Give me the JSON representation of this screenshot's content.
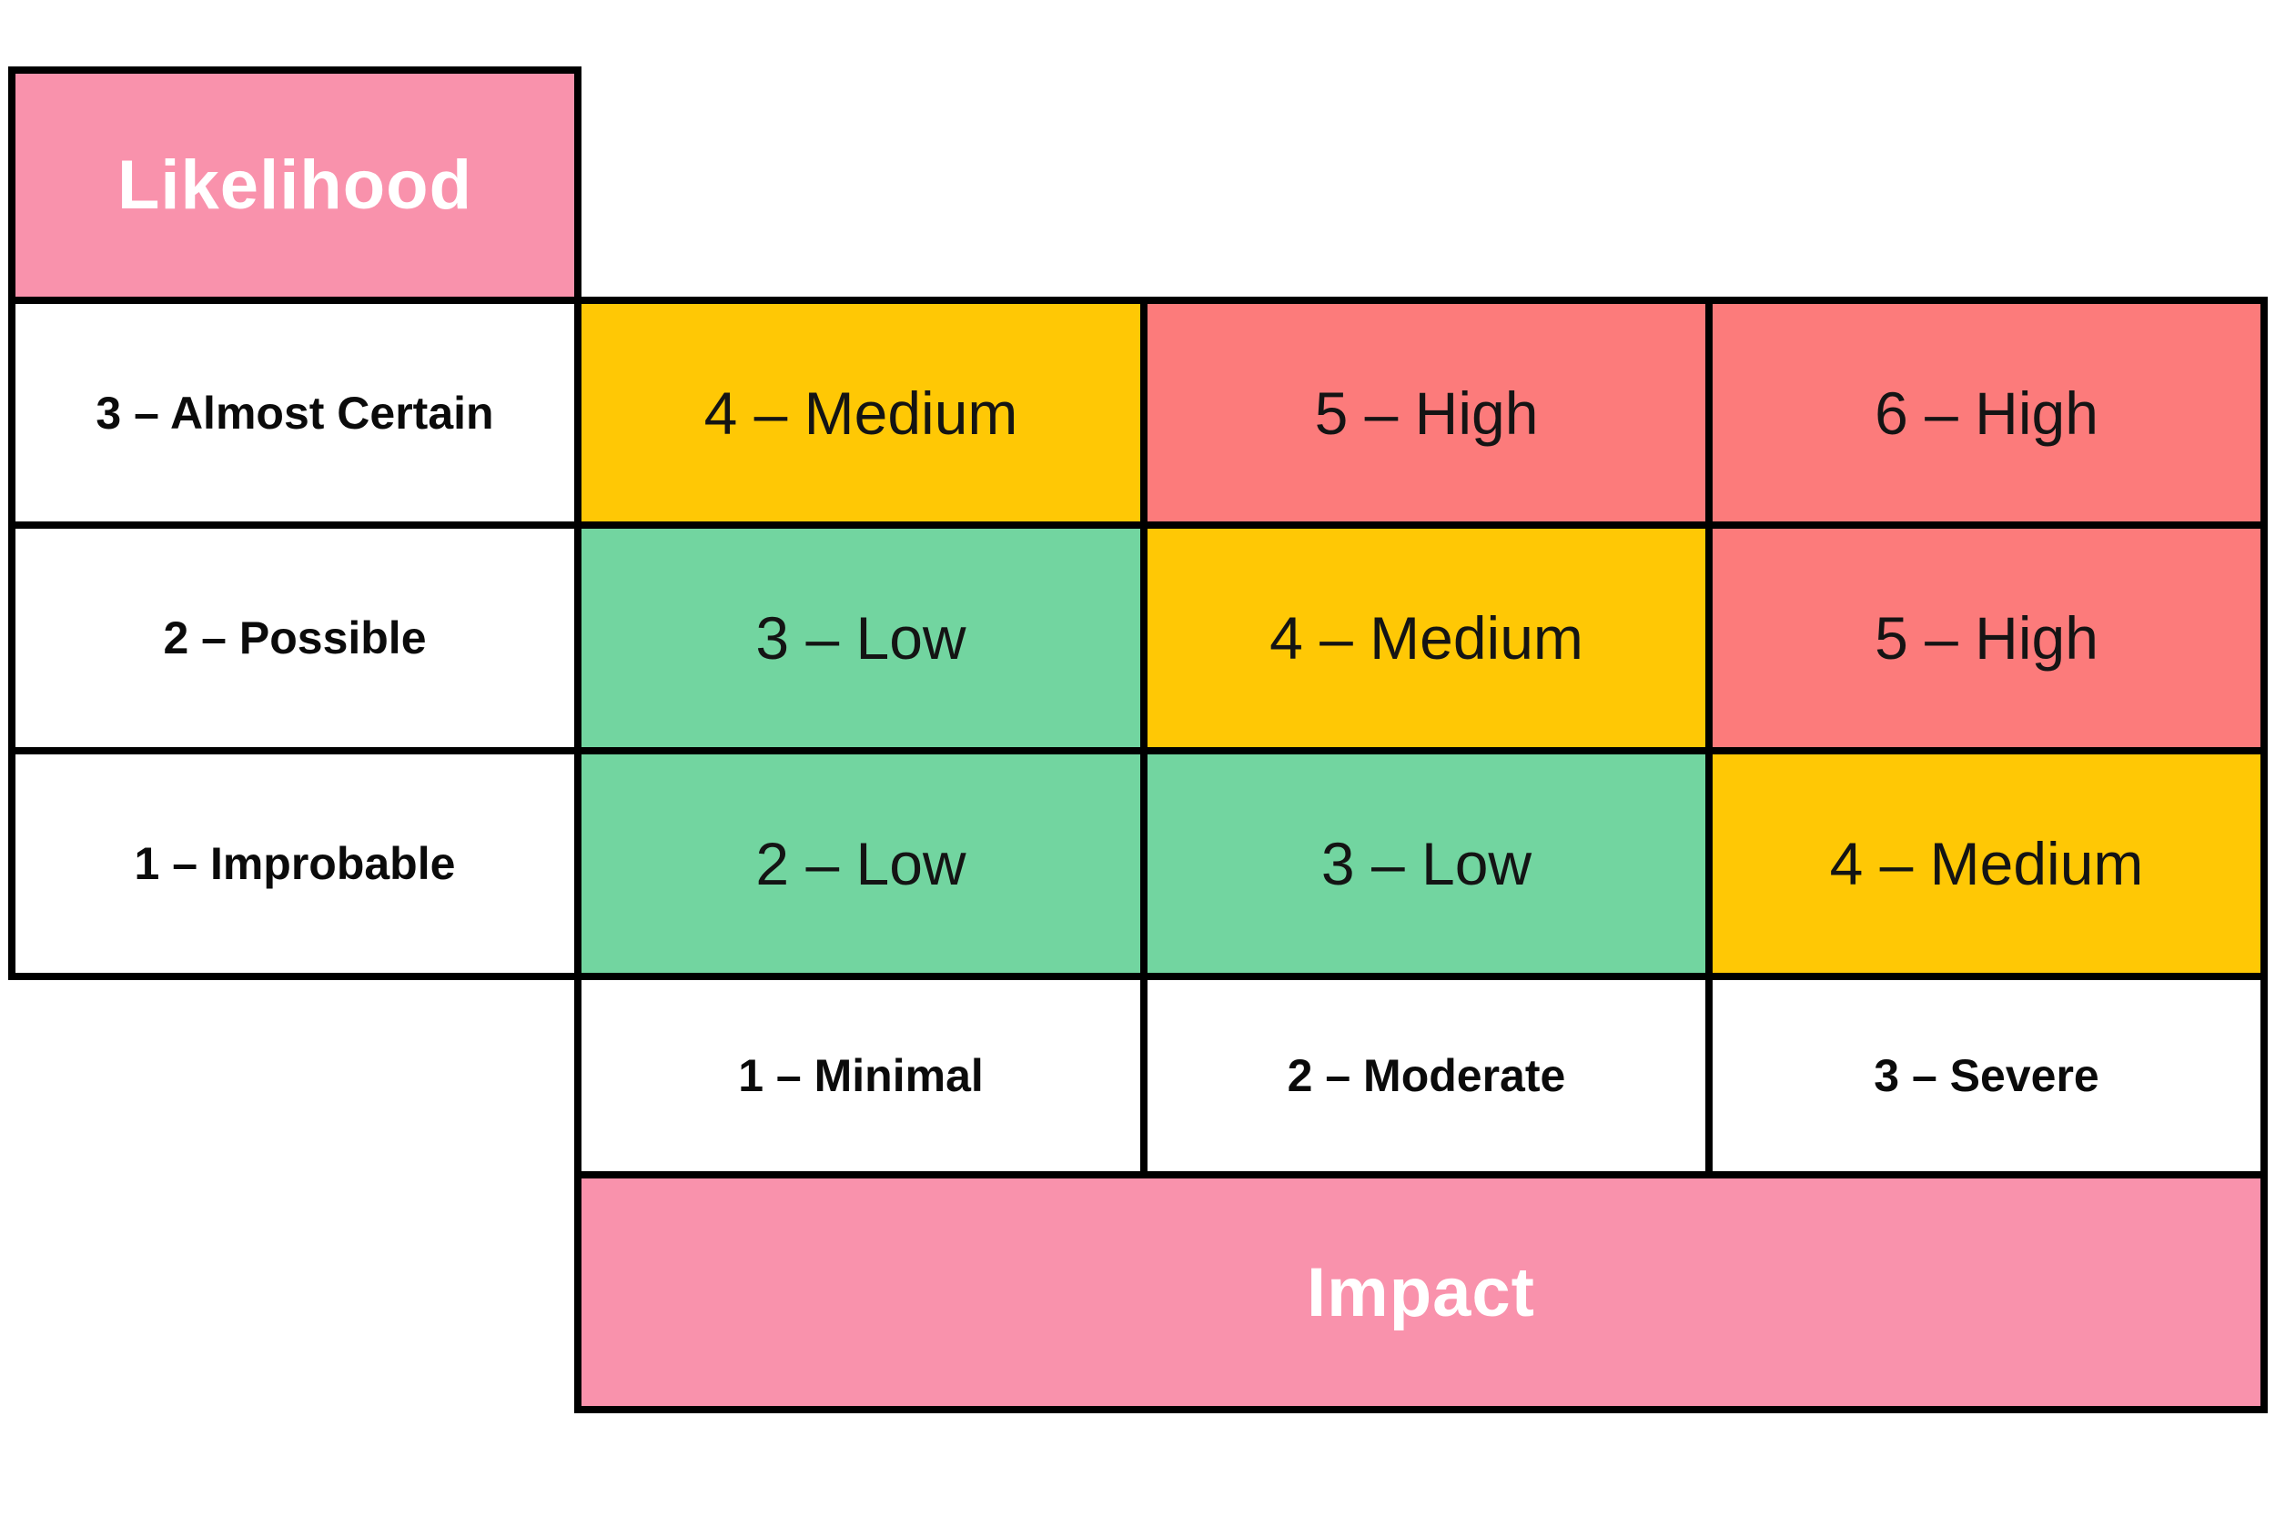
{
  "colors": {
    "header_pink": "#F992AC",
    "low_green": "#72D5A0",
    "medium_yellow": "#FFC805",
    "high_red": "#FC7B7B",
    "grid_line": "#000000",
    "header_text": "#FFFFFF",
    "cell_text": "#141414",
    "page_background": "#FFFFFF"
  },
  "matrix": {
    "likelihood_axis_title": "Likelihood",
    "impact_axis_title": "Impact",
    "likelihood_levels": [
      "3 – Almost Certain",
      "2 – Possible",
      "1 – Improbable"
    ],
    "impact_levels": [
      "1 – Minimal",
      "2 – Moderate",
      "3 – Severe"
    ],
    "rows": [
      {
        "likelihood": "3 – Almost Certain",
        "cells": [
          {
            "label": "4 – Medium",
            "severity": "medium"
          },
          {
            "label": "5 – High",
            "severity": "high"
          },
          {
            "label": "6 – High",
            "severity": "high"
          }
        ]
      },
      {
        "likelihood": "2 – Possible",
        "cells": [
          {
            "label": "3 – Low",
            "severity": "low"
          },
          {
            "label": "4 – Medium",
            "severity": "medium"
          },
          {
            "label": "5 – High",
            "severity": "high"
          }
        ]
      },
      {
        "likelihood": "1 – Improbable",
        "cells": [
          {
            "label": "2 – Low",
            "severity": "low"
          },
          {
            "label": "3 – Low",
            "severity": "low"
          },
          {
            "label": "4 – Medium",
            "severity": "medium"
          }
        ]
      }
    ]
  }
}
